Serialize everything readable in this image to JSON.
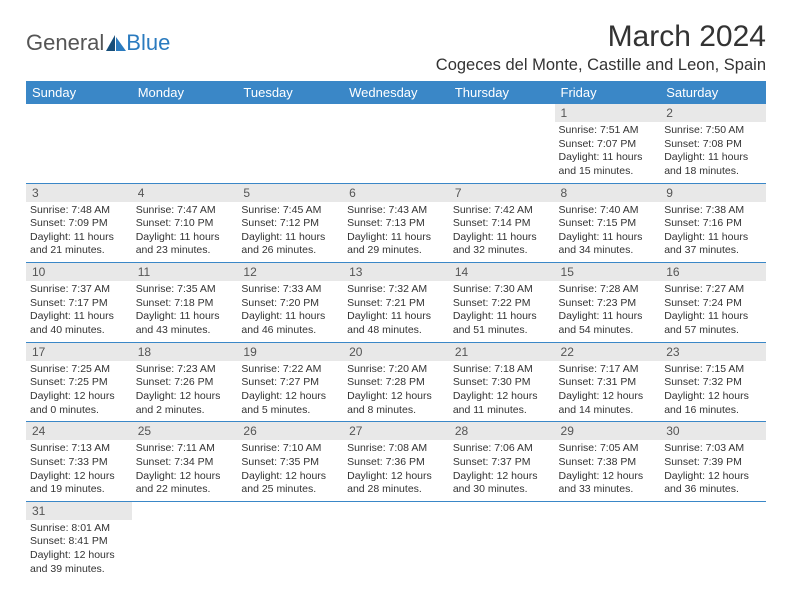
{
  "logo": {
    "text1": "General",
    "text2": "Blue"
  },
  "title": "March 2024",
  "location": "Cogeces del Monte, Castille and Leon, Spain",
  "colors": {
    "header_bg": "#3a87c7",
    "header_text": "#ffffff",
    "daynum_bg": "#e8e8e8",
    "row_border": "#3a87c7",
    "logo_blue": "#2b7bbf",
    "logo_dark": "#174e7a"
  },
  "weekdays": [
    "Sunday",
    "Monday",
    "Tuesday",
    "Wednesday",
    "Thursday",
    "Friday",
    "Saturday"
  ],
  "weeks": [
    [
      null,
      null,
      null,
      null,
      null,
      {
        "n": "1",
        "sr": "Sunrise: 7:51 AM",
        "ss": "Sunset: 7:07 PM",
        "d1": "Daylight: 11 hours",
        "d2": "and 15 minutes."
      },
      {
        "n": "2",
        "sr": "Sunrise: 7:50 AM",
        "ss": "Sunset: 7:08 PM",
        "d1": "Daylight: 11 hours",
        "d2": "and 18 minutes."
      }
    ],
    [
      {
        "n": "3",
        "sr": "Sunrise: 7:48 AM",
        "ss": "Sunset: 7:09 PM",
        "d1": "Daylight: 11 hours",
        "d2": "and 21 minutes."
      },
      {
        "n": "4",
        "sr": "Sunrise: 7:47 AM",
        "ss": "Sunset: 7:10 PM",
        "d1": "Daylight: 11 hours",
        "d2": "and 23 minutes."
      },
      {
        "n": "5",
        "sr": "Sunrise: 7:45 AM",
        "ss": "Sunset: 7:12 PM",
        "d1": "Daylight: 11 hours",
        "d2": "and 26 minutes."
      },
      {
        "n": "6",
        "sr": "Sunrise: 7:43 AM",
        "ss": "Sunset: 7:13 PM",
        "d1": "Daylight: 11 hours",
        "d2": "and 29 minutes."
      },
      {
        "n": "7",
        "sr": "Sunrise: 7:42 AM",
        "ss": "Sunset: 7:14 PM",
        "d1": "Daylight: 11 hours",
        "d2": "and 32 minutes."
      },
      {
        "n": "8",
        "sr": "Sunrise: 7:40 AM",
        "ss": "Sunset: 7:15 PM",
        "d1": "Daylight: 11 hours",
        "d2": "and 34 minutes."
      },
      {
        "n": "9",
        "sr": "Sunrise: 7:38 AM",
        "ss": "Sunset: 7:16 PM",
        "d1": "Daylight: 11 hours",
        "d2": "and 37 minutes."
      }
    ],
    [
      {
        "n": "10",
        "sr": "Sunrise: 7:37 AM",
        "ss": "Sunset: 7:17 PM",
        "d1": "Daylight: 11 hours",
        "d2": "and 40 minutes."
      },
      {
        "n": "11",
        "sr": "Sunrise: 7:35 AM",
        "ss": "Sunset: 7:18 PM",
        "d1": "Daylight: 11 hours",
        "d2": "and 43 minutes."
      },
      {
        "n": "12",
        "sr": "Sunrise: 7:33 AM",
        "ss": "Sunset: 7:20 PM",
        "d1": "Daylight: 11 hours",
        "d2": "and 46 minutes."
      },
      {
        "n": "13",
        "sr": "Sunrise: 7:32 AM",
        "ss": "Sunset: 7:21 PM",
        "d1": "Daylight: 11 hours",
        "d2": "and 48 minutes."
      },
      {
        "n": "14",
        "sr": "Sunrise: 7:30 AM",
        "ss": "Sunset: 7:22 PM",
        "d1": "Daylight: 11 hours",
        "d2": "and 51 minutes."
      },
      {
        "n": "15",
        "sr": "Sunrise: 7:28 AM",
        "ss": "Sunset: 7:23 PM",
        "d1": "Daylight: 11 hours",
        "d2": "and 54 minutes."
      },
      {
        "n": "16",
        "sr": "Sunrise: 7:27 AM",
        "ss": "Sunset: 7:24 PM",
        "d1": "Daylight: 11 hours",
        "d2": "and 57 minutes."
      }
    ],
    [
      {
        "n": "17",
        "sr": "Sunrise: 7:25 AM",
        "ss": "Sunset: 7:25 PM",
        "d1": "Daylight: 12 hours",
        "d2": "and 0 minutes."
      },
      {
        "n": "18",
        "sr": "Sunrise: 7:23 AM",
        "ss": "Sunset: 7:26 PM",
        "d1": "Daylight: 12 hours",
        "d2": "and 2 minutes."
      },
      {
        "n": "19",
        "sr": "Sunrise: 7:22 AM",
        "ss": "Sunset: 7:27 PM",
        "d1": "Daylight: 12 hours",
        "d2": "and 5 minutes."
      },
      {
        "n": "20",
        "sr": "Sunrise: 7:20 AM",
        "ss": "Sunset: 7:28 PM",
        "d1": "Daylight: 12 hours",
        "d2": "and 8 minutes."
      },
      {
        "n": "21",
        "sr": "Sunrise: 7:18 AM",
        "ss": "Sunset: 7:30 PM",
        "d1": "Daylight: 12 hours",
        "d2": "and 11 minutes."
      },
      {
        "n": "22",
        "sr": "Sunrise: 7:17 AM",
        "ss": "Sunset: 7:31 PM",
        "d1": "Daylight: 12 hours",
        "d2": "and 14 minutes."
      },
      {
        "n": "23",
        "sr": "Sunrise: 7:15 AM",
        "ss": "Sunset: 7:32 PM",
        "d1": "Daylight: 12 hours",
        "d2": "and 16 minutes."
      }
    ],
    [
      {
        "n": "24",
        "sr": "Sunrise: 7:13 AM",
        "ss": "Sunset: 7:33 PM",
        "d1": "Daylight: 12 hours",
        "d2": "and 19 minutes."
      },
      {
        "n": "25",
        "sr": "Sunrise: 7:11 AM",
        "ss": "Sunset: 7:34 PM",
        "d1": "Daylight: 12 hours",
        "d2": "and 22 minutes."
      },
      {
        "n": "26",
        "sr": "Sunrise: 7:10 AM",
        "ss": "Sunset: 7:35 PM",
        "d1": "Daylight: 12 hours",
        "d2": "and 25 minutes."
      },
      {
        "n": "27",
        "sr": "Sunrise: 7:08 AM",
        "ss": "Sunset: 7:36 PM",
        "d1": "Daylight: 12 hours",
        "d2": "and 28 minutes."
      },
      {
        "n": "28",
        "sr": "Sunrise: 7:06 AM",
        "ss": "Sunset: 7:37 PM",
        "d1": "Daylight: 12 hours",
        "d2": "and 30 minutes."
      },
      {
        "n": "29",
        "sr": "Sunrise: 7:05 AM",
        "ss": "Sunset: 7:38 PM",
        "d1": "Daylight: 12 hours",
        "d2": "and 33 minutes."
      },
      {
        "n": "30",
        "sr": "Sunrise: 7:03 AM",
        "ss": "Sunset: 7:39 PM",
        "d1": "Daylight: 12 hours",
        "d2": "and 36 minutes."
      }
    ],
    [
      {
        "n": "31",
        "sr": "Sunrise: 8:01 AM",
        "ss": "Sunset: 8:41 PM",
        "d1": "Daylight: 12 hours",
        "d2": "and 39 minutes."
      },
      null,
      null,
      null,
      null,
      null,
      null
    ]
  ]
}
